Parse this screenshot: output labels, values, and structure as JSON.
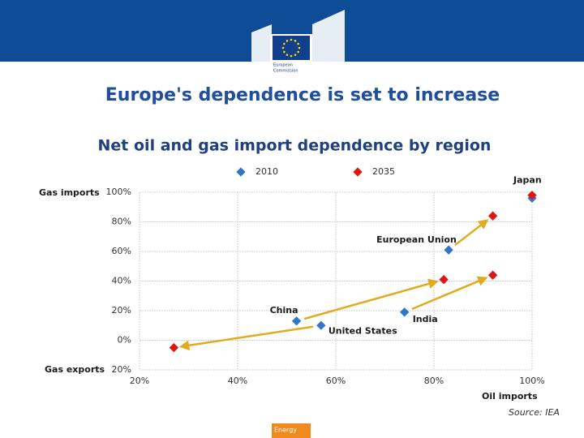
{
  "slide_title": "Europe's dependence is set to increase",
  "logo_lines": [
    "European",
    "Commission"
  ],
  "footer": "Energy",
  "chart_data": {
    "type": "scatter",
    "title": "Net oil and gas import dependence by region",
    "x_label": "Oil imports",
    "y_label_top": "Gas imports",
    "y_label_bottom": "Gas exports",
    "source": "Source: IEA",
    "point_labels": [
      "China",
      "United States",
      "India",
      "European Union",
      "Japan"
    ],
    "series": [
      {
        "name": "2010",
        "color": "#2f78c9",
        "x": [
          52,
          57,
          74,
          83,
          100
        ],
        "values": [
          13,
          10,
          19,
          61,
          96
        ]
      },
      {
        "name": "2035",
        "color": "#e01515",
        "x": [
          82,
          27,
          92,
          92,
          100
        ],
        "values": [
          41,
          -5,
          44,
          84,
          98
        ]
      }
    ],
    "arrow_color": "#e2aa1e",
    "xlim": [
      20,
      100
    ],
    "ylim": [
      -20,
      100
    ],
    "xticks": [
      {
        "value": 20,
        "label": "20%"
      },
      {
        "value": 40,
        "label": "40%"
      },
      {
        "value": 60,
        "label": "60%"
      },
      {
        "value": 80,
        "label": "80%"
      },
      {
        "value": 100,
        "label": "100%"
      }
    ],
    "yticks": [
      {
        "value": -20,
        "label": "20%"
      },
      {
        "value": 0,
        "label": "0%"
      },
      {
        "value": 20,
        "label": "20%"
      },
      {
        "value": 40,
        "label": "40%"
      },
      {
        "value": 60,
        "label": "60%"
      },
      {
        "value": 80,
        "label": "80%"
      },
      {
        "value": 100,
        "label": "100%"
      }
    ],
    "grid": true,
    "legend": "top"
  }
}
